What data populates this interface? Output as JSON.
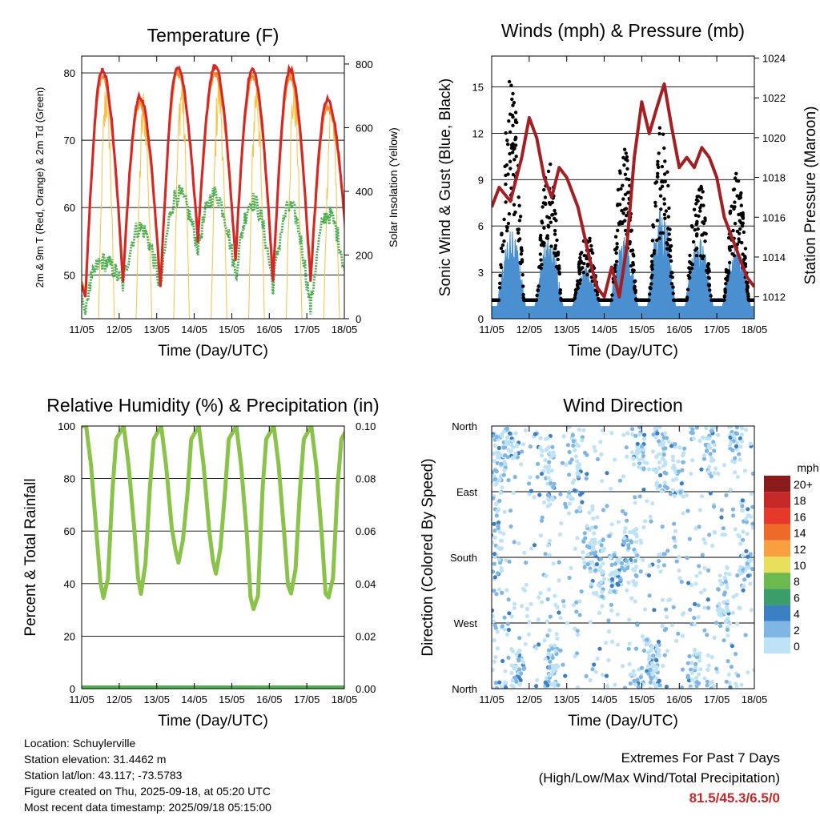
{
  "station": {
    "location": "Location: Schuylerville",
    "elevation": "Station elevation: 31.4462 m",
    "latlon": "Station lat/lon: 43.117; -73.5783",
    "created": "Figure created on Thu, 2025-09-18, at 05:20 UTC",
    "recent": "Most recent data timestamp: 2025/09/18 05:15:00"
  },
  "extremes": {
    "title": "Extremes For Past 7 Days",
    "subtitle": "(High/Low/Max Wind/Total Precipitation)",
    "values": "81.5/45.3/6.5/0"
  },
  "legend": {
    "unit": "mph",
    "labels": [
      "20+",
      "18",
      "16",
      "14",
      "12",
      "10",
      "8",
      "6",
      "4",
      "2",
      "0"
    ],
    "colors": [
      "#8b1a1a",
      "#c62828",
      "#e53929",
      "#ef6a2a",
      "#f8a040",
      "#e8e05a",
      "#6cb94e",
      "#3b9e6a",
      "#3a7fc2",
      "#7fb6e4",
      "#bfe3f6"
    ]
  },
  "chart_data": [
    {
      "type": "line",
      "title": "Temperature (F)",
      "xlabel": "Time (Day/UTC)",
      "ylabel": "2m & 9m T (Red, Orange) & 2m Td (Green)",
      "y2label": "Solar Insolation (Yellow)",
      "xticks": [
        "11/05",
        "12/05",
        "13/05",
        "14/05",
        "15/05",
        "16/05",
        "17/05",
        "18/05"
      ],
      "ylim": [
        43.5,
        82.5
      ],
      "yticks": [
        50,
        60,
        70,
        80
      ],
      "y2lim": [
        0,
        825
      ],
      "y2ticks": [
        0,
        200,
        400,
        600,
        800
      ],
      "grid": true,
      "days": [
        "11/05",
        "12/05",
        "13/05",
        "14/05",
        "15/05",
        "16/05",
        "17/05"
      ],
      "series": [
        {
          "name": "2m T",
          "color": "#d62728",
          "daily_max": [
            80.5,
            76.5,
            81.0,
            81.0,
            80.5,
            80.5,
            76.0
          ],
          "daily_min": [
            47.0,
            49.0,
            48.0,
            55.0,
            52.0,
            49.0,
            49.0
          ]
        },
        {
          "name": "9m T",
          "color": "#f28e2b",
          "daily_max": [
            79.5,
            75.5,
            80.0,
            80.0,
            79.5,
            79.5,
            75.0
          ],
          "daily_min": [
            47.5,
            49.5,
            48.5,
            55.5,
            52.5,
            49.5,
            49.5
          ]
        },
        {
          "name": "2m Td",
          "color": "#4caf50",
          "daily_max": [
            52.0,
            57.0,
            62.0,
            62.0,
            61.0,
            60.0,
            59.0
          ],
          "daily_min": [
            45.5,
            48.5,
            48.0,
            54.0,
            50.0,
            48.5,
            45.0
          ]
        },
        {
          "name": "Solar Insolation",
          "color": "#f5c242",
          "axis": "y2",
          "daily_max": [
            790,
            740,
            800,
            815,
            800,
            795,
            740
          ]
        }
      ]
    },
    {
      "type": "line",
      "title": "Winds (mph) & Pressure (mb)",
      "xlabel": "Time (Day/UTC)",
      "ylabel": "Sonic Wind & Gust (Blue, Black)",
      "y2label": "Station Pressure (Maroon)",
      "xticks": [
        "11/05",
        "12/05",
        "13/05",
        "14/05",
        "15/05",
        "16/05",
        "17/05",
        "18/05"
      ],
      "ylim": [
        0,
        17
      ],
      "yticks": [
        0,
        3,
        6,
        9,
        12,
        15
      ],
      "y2lim": [
        1010.9,
        1024.1
      ],
      "y2ticks": [
        1012,
        1014,
        1016,
        1018,
        1020,
        1022,
        1024
      ],
      "grid": true,
      "series": [
        {
          "name": "Sonic Wind",
          "color": "#4a90d0",
          "daily_peak": [
            5.0,
            4.5,
            2.5,
            4.5,
            6.5,
            4.5,
            4.0
          ]
        },
        {
          "name": "Gust",
          "color": "#000000",
          "daily_peak": [
            15.0,
            9.0,
            4.5,
            10.0,
            11.5,
            8.0,
            8.5
          ]
        },
        {
          "name": "Station Pressure",
          "color": "#a31f24",
          "x": [
            0.0,
            0.2,
            0.5,
            0.8,
            1.0,
            1.2,
            1.4,
            1.6,
            1.8,
            2.0,
            2.3,
            2.6,
            2.8,
            3.0,
            3.2,
            3.4,
            3.6,
            3.8,
            4.0,
            4.2,
            4.4,
            4.6,
            4.8,
            5.0,
            5.2,
            5.4,
            5.6,
            5.8,
            6.0,
            6.2,
            6.4,
            6.6,
            6.8,
            7.0
          ],
          "values": [
            1016.5,
            1017.5,
            1016.8,
            1019.0,
            1021.0,
            1020.0,
            1018.0,
            1017.0,
            1018.5,
            1018.0,
            1016.5,
            1014.0,
            1012.5,
            1012.0,
            1013.5,
            1012.0,
            1014.5,
            1019.0,
            1021.8,
            1020.2,
            1021.5,
            1022.7,
            1020.5,
            1018.5,
            1019.0,
            1018.5,
            1019.5,
            1019.0,
            1018.0,
            1016.0,
            1015.0,
            1014.0,
            1013.0,
            1012.5
          ]
        }
      ]
    },
    {
      "type": "line",
      "title": "Relative Humidity (%) & Precipitation (in)",
      "xlabel": "Time (Day/UTC)",
      "ylabel": "Percent & Total Rainfall",
      "xticks": [
        "11/05",
        "12/05",
        "13/05",
        "14/05",
        "15/05",
        "16/05",
        "17/05",
        "18/05"
      ],
      "ylim": [
        0,
        100
      ],
      "yticks": [
        0,
        20,
        40,
        60,
        80,
        100
      ],
      "y2lim": [
        0,
        0.1
      ],
      "y2ticks": [
        "0.00",
        "0.02",
        "0.04",
        "0.06",
        "0.08",
        "0.10"
      ],
      "grid": true,
      "series": [
        {
          "name": "Relative Humidity",
          "color": "#8bc34a",
          "daily_min": [
            35.0,
            38.0,
            48.0,
            45.0,
            29.0,
            37.0,
            33.0
          ],
          "daily_max": [
            100,
            100,
            100,
            97,
            100,
            100,
            100
          ]
        },
        {
          "name": "Total Precipitation",
          "color": "#4caf50",
          "values": [
            0.0,
            0.0
          ]
        }
      ]
    },
    {
      "type": "scatter",
      "title": "Wind Direction",
      "xlabel": "Time (Day/UTC)",
      "ylabel": "Direction (Colored By Speed)",
      "xticks": [
        "11/05",
        "12/05",
        "13/05",
        "14/05",
        "15/05",
        "16/05",
        "17/05",
        "18/05"
      ],
      "yticks": [
        "North",
        "West",
        "South",
        "East",
        "North"
      ],
      "ylim": [
        0,
        360
      ],
      "grid": true,
      "colorbar_unit": "mph"
    }
  ]
}
